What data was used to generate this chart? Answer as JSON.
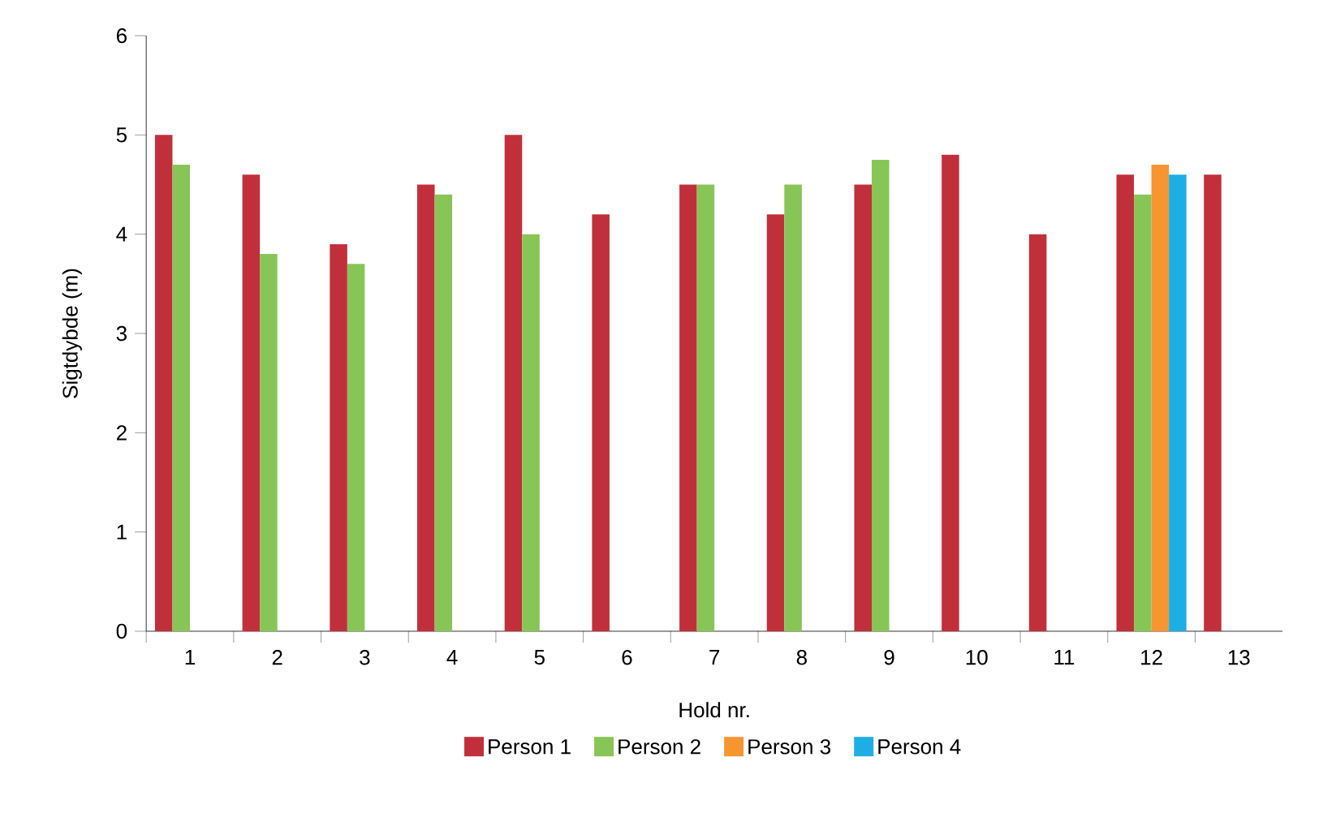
{
  "chart_data": {
    "type": "bar",
    "xlabel": "Hold nr.",
    "ylabel": "Sigtdybde (m)",
    "categories": [
      "1",
      "2",
      "3",
      "4",
      "5",
      "6",
      "7",
      "8",
      "9",
      "10",
      "11",
      "12",
      "13"
    ],
    "series": [
      {
        "name": "Person 1",
        "color": "#c1303a",
        "values": [
          5.0,
          4.6,
          3.9,
          4.5,
          5.0,
          4.2,
          4.5,
          4.2,
          4.5,
          4.8,
          4.0,
          4.6,
          4.6
        ]
      },
      {
        "name": "Person 2",
        "color": "#88c557",
        "values": [
          4.7,
          3.8,
          3.7,
          4.4,
          4.0,
          null,
          4.5,
          4.5,
          4.75,
          null,
          null,
          4.4,
          null
        ]
      },
      {
        "name": "Person 3",
        "color": "#f79531",
        "values": [
          null,
          null,
          null,
          null,
          null,
          null,
          null,
          null,
          null,
          null,
          null,
          4.7,
          null
        ]
      },
      {
        "name": "Person 4",
        "color": "#1daee3",
        "values": [
          null,
          null,
          null,
          null,
          null,
          null,
          null,
          null,
          null,
          null,
          null,
          4.6,
          null
        ]
      }
    ],
    "ylim": [
      0,
      6
    ],
    "yticks": [
      0,
      1,
      2,
      3,
      4,
      5,
      6
    ],
    "grid": false,
    "legend": "bottom"
  }
}
